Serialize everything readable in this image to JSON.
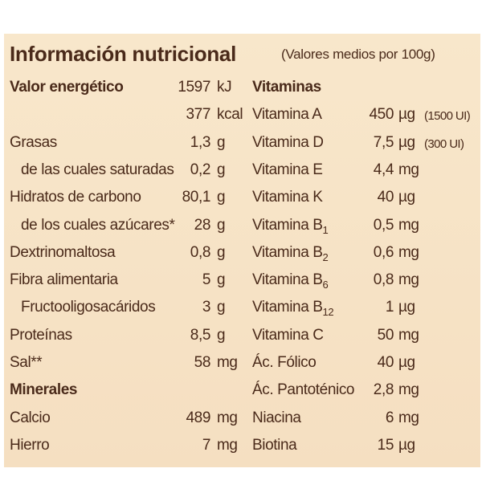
{
  "title": "Información nutricional",
  "subtitle": "(Valores medios por 100g)",
  "left": [
    {
      "name": "Valor energético",
      "value": "1597",
      "unit": "kJ",
      "bold": true
    },
    {
      "value": "377",
      "unit": "kcal"
    },
    {
      "name": "Grasas",
      "value": "1,3",
      "unit": "g"
    },
    {
      "name": "de las cuales saturadas",
      "value": "0,2",
      "unit": "g",
      "indent": true
    },
    {
      "name": "Hidratos de carbono",
      "value": "80,1",
      "unit": "g"
    },
    {
      "name": "de los cuales azúcares*",
      "value": "28",
      "unit": "g",
      "indent": true
    },
    {
      "name": "Dextrinomaltosa",
      "value": "0,8",
      "unit": "g"
    },
    {
      "name": "Fibra alimentaria",
      "value": "5",
      "unit": "g"
    },
    {
      "name": "Fructooligosacáridos",
      "value": "3",
      "unit": "g",
      "indent": true
    },
    {
      "name": "Proteínas",
      "value": "8,5",
      "unit": "g"
    },
    {
      "name": "Sal**",
      "value": "58",
      "unit": "mg"
    },
    {
      "name": "Minerales",
      "bold": true
    },
    {
      "name": "Calcio",
      "value": "489",
      "unit": "mg"
    },
    {
      "name": "Hierro",
      "value": "7",
      "unit": "mg"
    }
  ],
  "right": [
    {
      "name": "Vitaminas",
      "bold": true
    },
    {
      "name": "Vitamina A",
      "value": "450",
      "unit": "µg",
      "note": "(1500 UI)"
    },
    {
      "name": "Vitamina D",
      "value": "7,5",
      "unit": "µg",
      "note": "(300 UI)"
    },
    {
      "name": "Vitamina E",
      "value": "4,4",
      "unit": "mg"
    },
    {
      "name": "Vitamina K",
      "value": "40",
      "unit": "µg"
    },
    {
      "name": "Vitamina B",
      "sub": "1",
      "value": "0,5",
      "unit": "mg"
    },
    {
      "name": "Vitamina B",
      "sub": "2",
      "value": "0,6",
      "unit": "mg"
    },
    {
      "name": "Vitamina B",
      "sub": "6",
      "value": "0,8",
      "unit": "mg"
    },
    {
      "name": "Vitamina B",
      "sub": "12",
      "value": "1",
      "unit": "µg"
    },
    {
      "name": "Vitamina C",
      "value": "50",
      "unit": "mg"
    },
    {
      "name": "Ác. Fólico",
      "value": "40",
      "unit": "µg"
    },
    {
      "name": "Ác. Pantoténico",
      "value": "2,8",
      "unit": "mg"
    },
    {
      "name": "Niacina",
      "value": "6",
      "unit": "mg"
    },
    {
      "name": "Biotina",
      "value": "15",
      "unit": "µg"
    }
  ]
}
